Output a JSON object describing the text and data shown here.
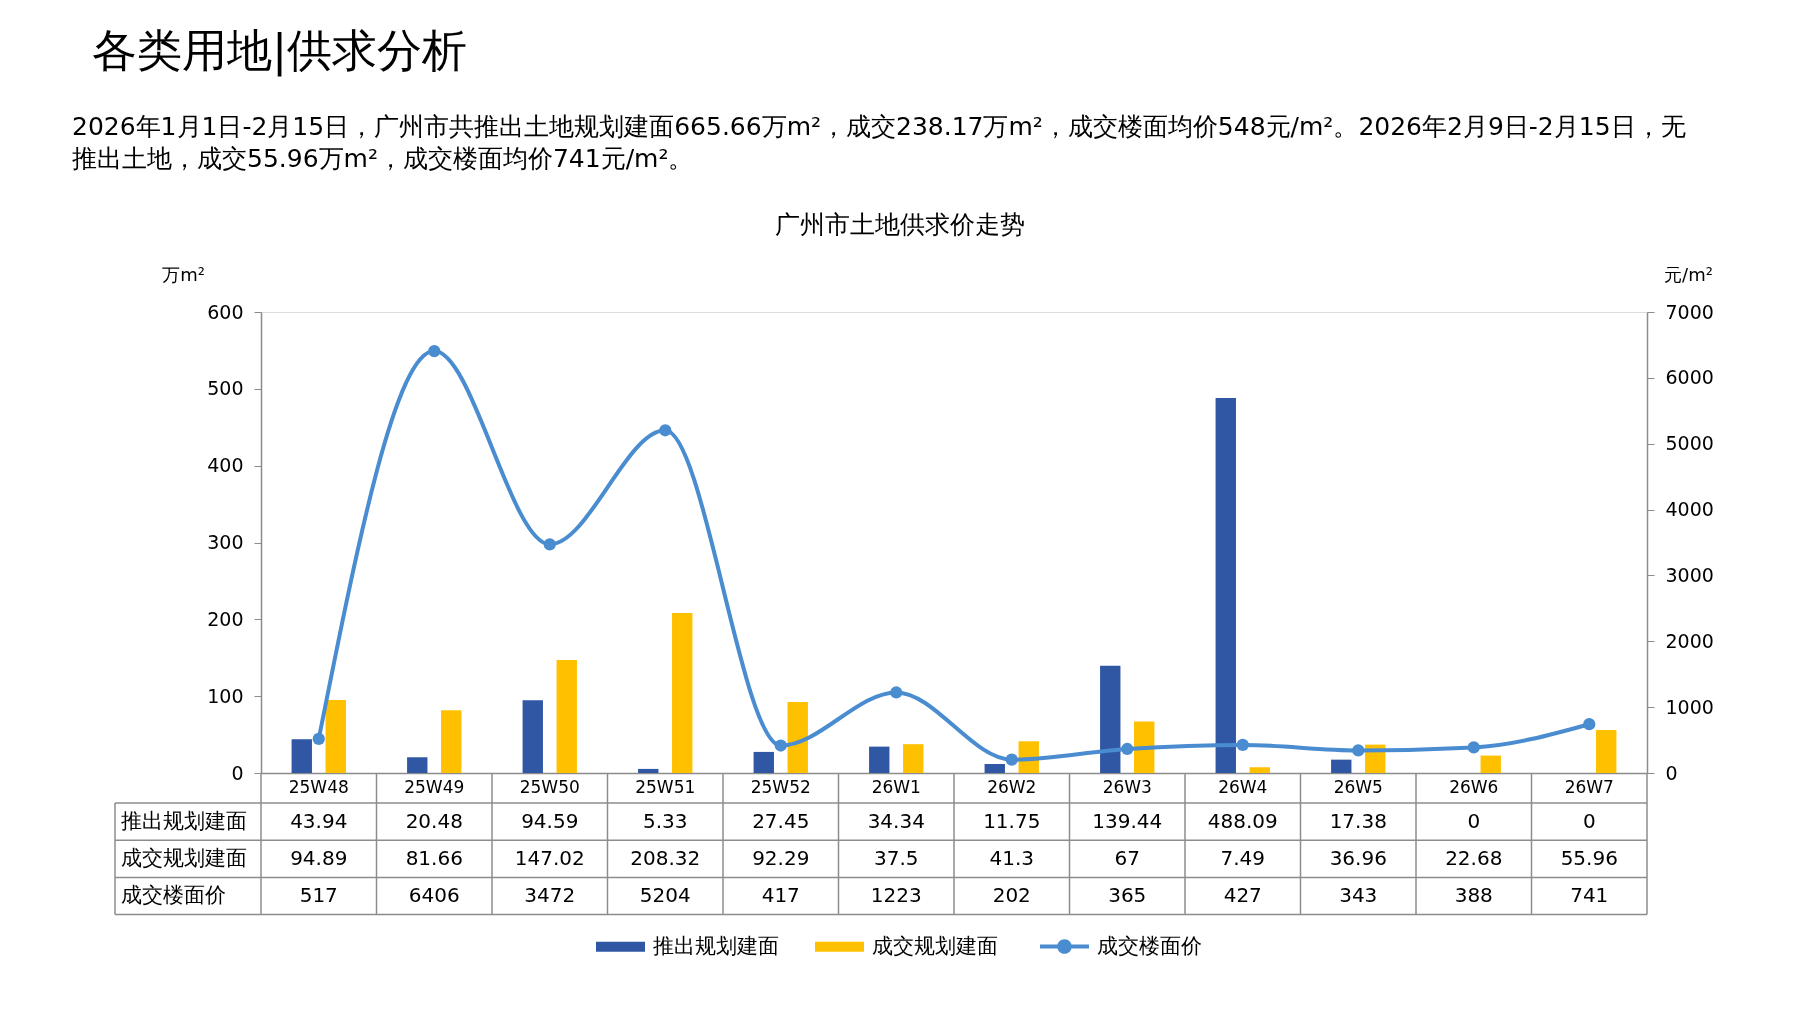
{
  "chart_data": {
    "type": "bar",
    "title": "广州市土地供求价走势",
    "annotations": [
      "各类用地|供求分析",
      "2026年1月1日-2月15日，广州市共推出土地规划建面665.66万m²，成交238.17万m²，成交楼面均价548元/m²。2026年2月9日-2月15日，无推出土地，成交55.96万m²，成交楼面均价741元/m²。"
    ],
    "ylabel": "万m²",
    "y2label": "元/m²",
    "categories": [
      "25W48",
      "25W49",
      "25W50",
      "25W51",
      "25W52",
      "26W1",
      "26W2",
      "26W3",
      "26W4",
      "26W5",
      "26W6",
      "26W7"
    ],
    "series": [
      {
        "name": "推出规划建面",
        "color": "#2f57a4",
        "values": [
          43.94,
          20.48,
          94.59,
          5.33,
          27.45,
          34.34,
          11.75,
          139.44,
          488.09,
          17.38,
          0,
          0
        ]
      },
      {
        "name": "成交规划建面",
        "color": "#ffc000",
        "values": [
          94.89,
          81.66,
          147.02,
          208.32,
          92.29,
          37.5,
          41.3,
          67,
          7.49,
          36.96,
          22.68,
          55.96
        ]
      },
      {
        "name": "成交楼面价",
        "type": "line",
        "axis": "y2",
        "color": "#4a8cd0",
        "values": [
          517,
          6406,
          3472,
          5204,
          417,
          1223,
          202,
          365,
          427,
          343,
          388,
          741
        ]
      }
    ],
    "ylim": [
      0,
      600
    ],
    "yticks": [
      0,
      100,
      200,
      300,
      400,
      500,
      600
    ],
    "y2lim": [
      0,
      7000
    ],
    "y2ticks": [
      0,
      1000,
      2000,
      3000,
      4000,
      5000,
      6000,
      7000
    ],
    "legend": "bottom",
    "data_labels": true,
    "marker": "circle",
    "line_style": "solid"
  }
}
